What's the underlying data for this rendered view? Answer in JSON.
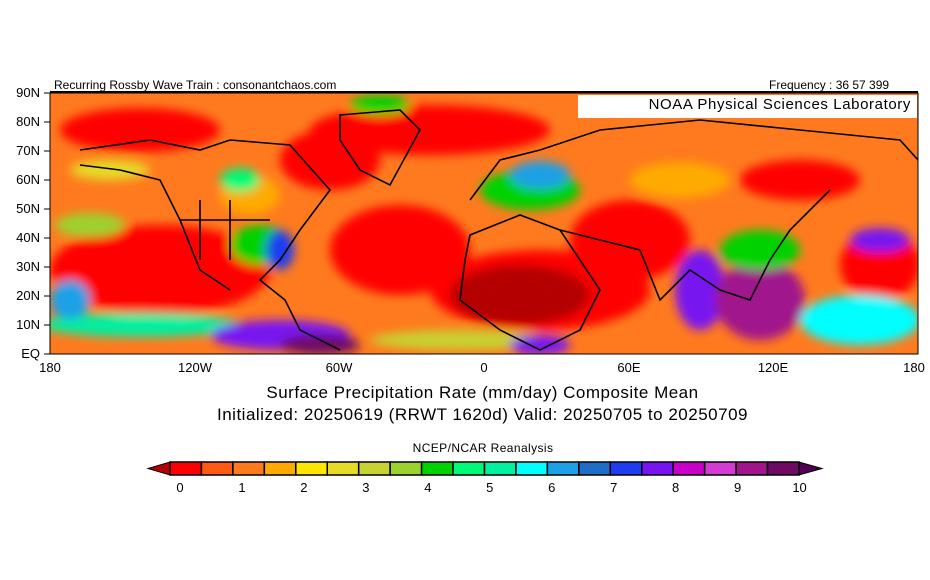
{
  "header": {
    "left": "Recurring Rossby Wave Train : consonantchaos.com",
    "right": "Frequency : 36 57 399"
  },
  "nameplate": "NOAA Physical Sciences Laboratory",
  "y_axis": [
    "90N",
    "80N",
    "70N",
    "60N",
    "50N",
    "40N",
    "30N",
    "20N",
    "10N",
    "EQ"
  ],
  "x_axis": [
    "180",
    "120W",
    "60W",
    "0",
    "60E",
    "120E",
    "180"
  ],
  "title_line1": "Surface Precipitation Rate (mm/day) Composite Mean",
  "title_line2": "Initialized: 20250619 (RRWT 1620d) Valid: 20250705 to 20250709",
  "colorbar": {
    "source": "NCEP/NCAR Reanalysis",
    "labels": [
      "0",
      "1",
      "2",
      "3",
      "4",
      "5",
      "6",
      "7",
      "8",
      "9",
      "10"
    ],
    "under_color": "#b40000",
    "over_color": "#500050",
    "colors": [
      "#ff0000",
      "#ff5a14",
      "#ff7a1e",
      "#ffaa00",
      "#ffe600",
      "#e6dc28",
      "#c8d232",
      "#9bd22d",
      "#00d200",
      "#00fa78",
      "#00f0a0",
      "#00ffff",
      "#1ea0e6",
      "#1e6ec8",
      "#1e3cf0",
      "#7814f0",
      "#c800c8",
      "#d23cd2",
      "#a0148c",
      "#6e0a64"
    ]
  }
}
